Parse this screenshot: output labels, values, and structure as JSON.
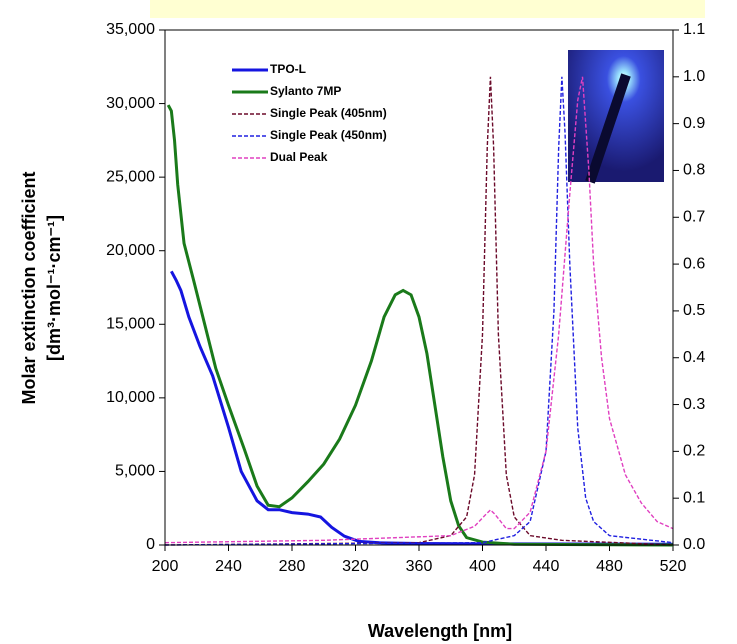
{
  "chart_data": {
    "type": "line",
    "xlabel": "Wavelength [nm]",
    "ylabel": [
      "Molar extinction coefficient",
      "[dm³·mol⁻¹·cm⁻¹]"
    ],
    "xlim": [
      200,
      520
    ],
    "xticks": [
      200,
      240,
      280,
      320,
      360,
      400,
      440,
      480,
      520
    ],
    "ylim": [
      0,
      35000
    ],
    "yticks": [
      {
        "value": 0,
        "label": "0"
      },
      {
        "value": 5000,
        "label": "5,000"
      },
      {
        "value": 10000,
        "label": "10,000"
      },
      {
        "value": 15000,
        "label": "15,000"
      },
      {
        "value": 20000,
        "label": "20,000"
      },
      {
        "value": 25000,
        "label": "25,000"
      },
      {
        "value": 30000,
        "label": "30,000"
      },
      {
        "value": 35000,
        "label": "35,000"
      }
    ],
    "y2lim": [
      0,
      1.1
    ],
    "y2ticks": [
      {
        "value": 0,
        "label": "0.0"
      },
      {
        "value": 0.1,
        "label": "0.1"
      },
      {
        "value": 0.2,
        "label": "0.2"
      },
      {
        "value": 0.3,
        "label": "0.3"
      },
      {
        "value": 0.4,
        "label": "0.4"
      },
      {
        "value": 0.5,
        "label": "0.5"
      },
      {
        "value": 0.6,
        "label": "0.6"
      },
      {
        "value": 0.7,
        "label": "0.7"
      },
      {
        "value": 0.8,
        "label": "0.8"
      },
      {
        "value": 0.9,
        "label": "0.9"
      },
      {
        "value": 1.0,
        "label": "1.0"
      },
      {
        "value": 1.1,
        "label": "1.1"
      }
    ],
    "legend": "upper left",
    "series": [
      {
        "name": "TPO-L",
        "color": "#1515e0",
        "dash": false,
        "x": [
          204,
          207,
          210,
          215,
          222,
          230,
          240,
          248,
          258,
          265,
          272,
          280,
          290,
          298,
          305,
          313,
          322,
          335,
          360,
          400,
          520
        ],
        "values": [
          18600,
          18000,
          17300,
          15500,
          13500,
          11500,
          8000,
          5000,
          3000,
          2400,
          2400,
          2200,
          2100,
          1900,
          1200,
          600,
          250,
          150,
          100,
          80,
          50
        ]
      },
      {
        "name": "Sylanto 7MP",
        "color": "#1a7a1a",
        "dash": false,
        "x": [
          202,
          204,
          206,
          208,
          212,
          218,
          225,
          232,
          240,
          250,
          258,
          265,
          272,
          280,
          290,
          300,
          310,
          320,
          330,
          338,
          345,
          350,
          355,
          360,
          365,
          370,
          375,
          380,
          385,
          390,
          400,
          420,
          520
        ],
        "values": [
          29900,
          29500,
          27500,
          24500,
          20500,
          18000,
          15000,
          12000,
          9500,
          6500,
          4000,
          2700,
          2600,
          3200,
          4300,
          5500,
          7200,
          9500,
          12500,
          15500,
          17000,
          17300,
          17000,
          15500,
          13000,
          9500,
          6000,
          3000,
          1300,
          500,
          200,
          50,
          0
        ]
      },
      {
        "name": "Single Peak (405nm)",
        "color": "#6b0a2a",
        "dash": true,
        "axis": "y2",
        "x": [
          200,
          360,
          380,
          390,
          395,
          400,
          403,
          405,
          407,
          410,
          415,
          420,
          430,
          450,
          520
        ],
        "values": [
          0,
          0.005,
          0.02,
          0.06,
          0.15,
          0.45,
          0.85,
          1.0,
          0.85,
          0.45,
          0.15,
          0.06,
          0.02,
          0.01,
          0
        ]
      },
      {
        "name": "Single Peak (450nm)",
        "color": "#2020e0",
        "dash": true,
        "axis": "y2",
        "x": [
          200,
          400,
          420,
          430,
          440,
          445,
          448,
          450,
          452,
          455,
          460,
          465,
          470,
          480,
          520
        ],
        "values": [
          0,
          0.005,
          0.02,
          0.05,
          0.2,
          0.5,
          0.85,
          1.0,
          0.88,
          0.6,
          0.25,
          0.1,
          0.05,
          0.02,
          0.005
        ]
      },
      {
        "name": "Dual Peak",
        "color": "#e040c0",
        "dash": true,
        "axis": "y2",
        "x": [
          200,
          300,
          380,
          395,
          402,
          405,
          408,
          415,
          420,
          430,
          440,
          448,
          455,
          460,
          463,
          467,
          470,
          475,
          480,
          490,
          500,
          510,
          520
        ],
        "values": [
          0.005,
          0.01,
          0.02,
          0.04,
          0.065,
          0.075,
          0.065,
          0.035,
          0.035,
          0.07,
          0.2,
          0.45,
          0.75,
          0.95,
          1.0,
          0.8,
          0.6,
          0.4,
          0.27,
          0.15,
          0.09,
          0.05,
          0.035
        ]
      }
    ]
  }
}
